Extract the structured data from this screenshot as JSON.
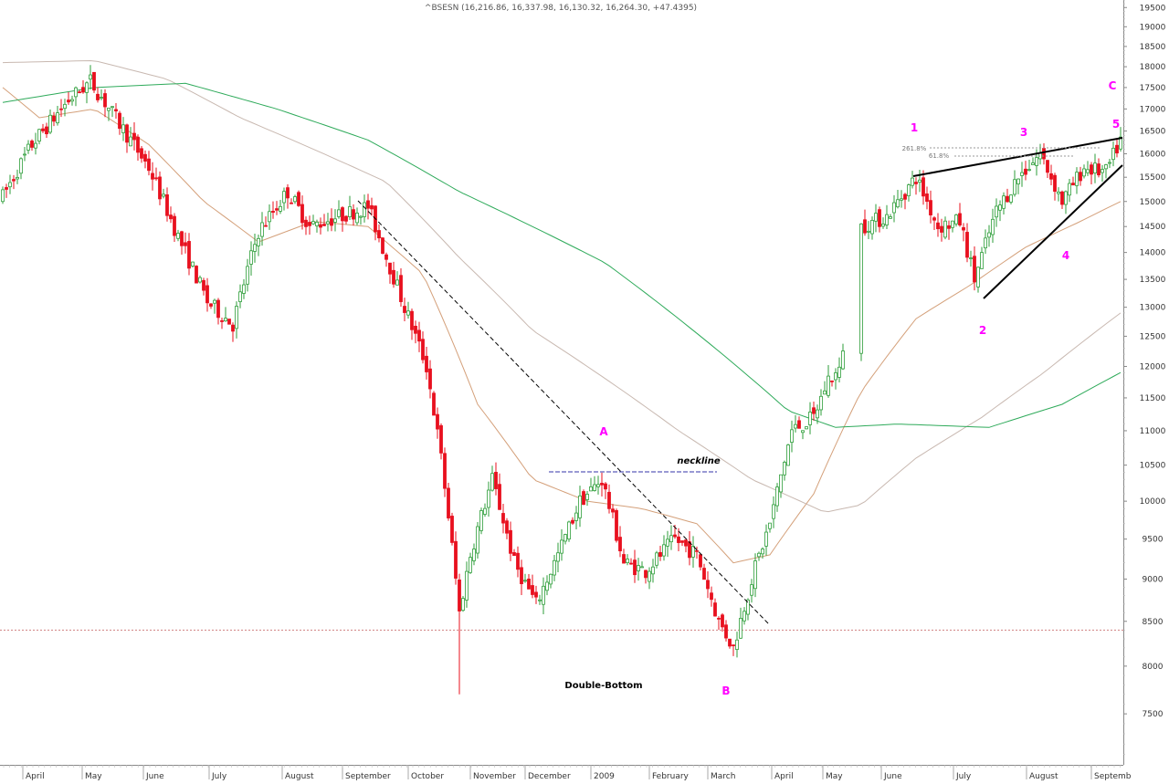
{
  "chart_data": {
    "type": "candlestick",
    "title": "^BSESN (16,216.86, 16,337.98, 16,130.32, 16,264.30, +47.4395)",
    "y_scale": "log",
    "ylim": [
      7000,
      19700
    ],
    "y_ticks": [
      7500,
      8000,
      8500,
      9000,
      9500,
      10000,
      10500,
      11000,
      11500,
      12000,
      12500,
      13000,
      13500,
      14000,
      14500,
      15000,
      15500,
      16000,
      16500,
      17000,
      17500,
      18000,
      18500,
      19000,
      19500
    ],
    "x_tick_labels": [
      "April",
      "May",
      "June",
      "July",
      "August",
      "September",
      "October",
      "November",
      "December",
      "2009",
      "February",
      "March",
      "April",
      "May",
      "June",
      "July",
      "August",
      "Septemb"
    ],
    "grid": false,
    "price_path": [
      {
        "i": 0,
        "close": 15100
      },
      {
        "i": 8,
        "close": 16200
      },
      {
        "i": 18,
        "close": 17200
      },
      {
        "i": 24,
        "close": 17650
      },
      {
        "i": 30,
        "close": 16900
      },
      {
        "i": 40,
        "close": 15700
      },
      {
        "i": 48,
        "close": 14300
      },
      {
        "i": 56,
        "close": 13100
      },
      {
        "i": 63,
        "close": 12700
      },
      {
        "i": 70,
        "close": 14400
      },
      {
        "i": 78,
        "close": 15200
      },
      {
        "i": 84,
        "close": 14500
      },
      {
        "i": 92,
        "close": 14700
      },
      {
        "i": 100,
        "close": 14900
      },
      {
        "i": 104,
        "close": 14100
      },
      {
        "i": 110,
        "close": 13000
      },
      {
        "i": 116,
        "close": 12000
      },
      {
        "i": 120,
        "close": 10600
      },
      {
        "i": 125,
        "close": 8600
      },
      {
        "i": 128,
        "close": 9300
      },
      {
        "i": 134,
        "close": 10300
      },
      {
        "i": 140,
        "close": 9200
      },
      {
        "i": 146,
        "close": 8700
      },
      {
        "i": 152,
        "close": 9300
      },
      {
        "i": 158,
        "close": 10000
      },
      {
        "i": 164,
        "close": 10300
      },
      {
        "i": 170,
        "close": 9200
      },
      {
        "i": 176,
        "close": 9100
      },
      {
        "i": 184,
        "close": 9500
      },
      {
        "i": 190,
        "close": 9300
      },
      {
        "i": 196,
        "close": 8500
      },
      {
        "i": 200,
        "close": 8200
      },
      {
        "i": 205,
        "close": 9000
      },
      {
        "i": 210,
        "close": 9700
      },
      {
        "i": 216,
        "close": 11000
      },
      {
        "i": 222,
        "close": 11200
      },
      {
        "i": 226,
        "close": 11800
      },
      {
        "i": 229,
        "close": 11900
      },
      {
        "i": 235,
        "close": 14500
      },
      {
        "i": 242,
        "close": 14700
      },
      {
        "i": 250,
        "close": 15500
      },
      {
        "i": 256,
        "close": 14500
      },
      {
        "i": 262,
        "close": 14600
      },
      {
        "i": 266,
        "close": 13500
      },
      {
        "i": 272,
        "close": 14800
      },
      {
        "i": 278,
        "close": 15500
      },
      {
        "i": 284,
        "close": 16000
      },
      {
        "i": 290,
        "close": 15000
      },
      {
        "i": 296,
        "close": 15700
      },
      {
        "i": 302,
        "close": 15600
      },
      {
        "i": 306,
        "close": 16300
      }
    ],
    "moving_averages": [
      {
        "color": "#d4a07a",
        "path": [
          {
            "i": 0,
            "v": 17500
          },
          {
            "i": 10,
            "v": 16800
          },
          {
            "i": 25,
            "v": 17000
          },
          {
            "i": 40,
            "v": 16200
          },
          {
            "i": 55,
            "v": 15000
          },
          {
            "i": 70,
            "v": 14200
          },
          {
            "i": 85,
            "v": 14600
          },
          {
            "i": 100,
            "v": 14500
          },
          {
            "i": 115,
            "v": 13600
          },
          {
            "i": 130,
            "v": 11400
          },
          {
            "i": 145,
            "v": 10300
          },
          {
            "i": 160,
            "v": 10000
          },
          {
            "i": 175,
            "v": 9900
          },
          {
            "i": 190,
            "v": 9700
          },
          {
            "i": 200,
            "v": 9200
          },
          {
            "i": 210,
            "v": 9300
          },
          {
            "i": 222,
            "v": 10100
          },
          {
            "i": 235,
            "v": 11600
          },
          {
            "i": 250,
            "v": 12800
          },
          {
            "i": 265,
            "v": 13400
          },
          {
            "i": 280,
            "v": 14100
          },
          {
            "i": 295,
            "v": 14600
          },
          {
            "i": 306,
            "v": 15000
          }
        ]
      },
      {
        "color": "#c8b8b0",
        "path": [
          {
            "i": 0,
            "v": 18100
          },
          {
            "i": 25,
            "v": 18150
          },
          {
            "i": 45,
            "v": 17700
          },
          {
            "i": 65,
            "v": 16800
          },
          {
            "i": 85,
            "v": 16100
          },
          {
            "i": 105,
            "v": 15400
          },
          {
            "i": 125,
            "v": 13900
          },
          {
            "i": 145,
            "v": 12600
          },
          {
            "i": 165,
            "v": 11800
          },
          {
            "i": 185,
            "v": 11000
          },
          {
            "i": 205,
            "v": 10300
          },
          {
            "i": 225,
            "v": 9850
          },
          {
            "i": 235,
            "v": 9950
          },
          {
            "i": 250,
            "v": 10600
          },
          {
            "i": 268,
            "v": 11200
          },
          {
            "i": 285,
            "v": 11900
          },
          {
            "i": 306,
            "v": 12900
          }
        ]
      },
      {
        "color": "#2eaa5a",
        "path": [
          {
            "i": 0,
            "v": 17150
          },
          {
            "i": 25,
            "v": 17500
          },
          {
            "i": 50,
            "v": 17600
          },
          {
            "i": 75,
            "v": 17000
          },
          {
            "i": 100,
            "v": 16300
          },
          {
            "i": 125,
            "v": 15200
          },
          {
            "i": 145,
            "v": 14500
          },
          {
            "i": 165,
            "v": 13800
          },
          {
            "i": 185,
            "v": 12800
          },
          {
            "i": 205,
            "v": 11800
          },
          {
            "i": 215,
            "v": 11300
          },
          {
            "i": 228,
            "v": 11050
          },
          {
            "i": 245,
            "v": 11100
          },
          {
            "i": 270,
            "v": 11050
          },
          {
            "i": 290,
            "v": 11400
          },
          {
            "i": 306,
            "v": 11900
          }
        ]
      }
    ],
    "horizontal_reference": {
      "value": 8400,
      "style": "dashed",
      "color": "#d08080"
    },
    "annotations": [
      {
        "text": "1",
        "color": "#ff00ff"
      },
      {
        "text": "2",
        "color": "#ff00ff"
      },
      {
        "text": "3",
        "color": "#ff00ff"
      },
      {
        "text": "4",
        "color": "#ff00ff"
      },
      {
        "text": "5",
        "color": "#ff00ff"
      },
      {
        "text": "A",
        "color": "#ff00ff"
      },
      {
        "text": "B",
        "color": "#ff00ff"
      },
      {
        "text": "C",
        "color": "#ff00ff"
      },
      {
        "text": "neckline",
        "color": "#000000"
      },
      {
        "text": "Double-Bottom",
        "color": "#000000"
      },
      {
        "text": "261.8%",
        "color": "#777777"
      },
      {
        "text": "61.8%",
        "color": "#777777"
      }
    ],
    "colors": {
      "up": "#2e9e3a",
      "down": "#e8101e",
      "background": "#ffffff"
    }
  }
}
